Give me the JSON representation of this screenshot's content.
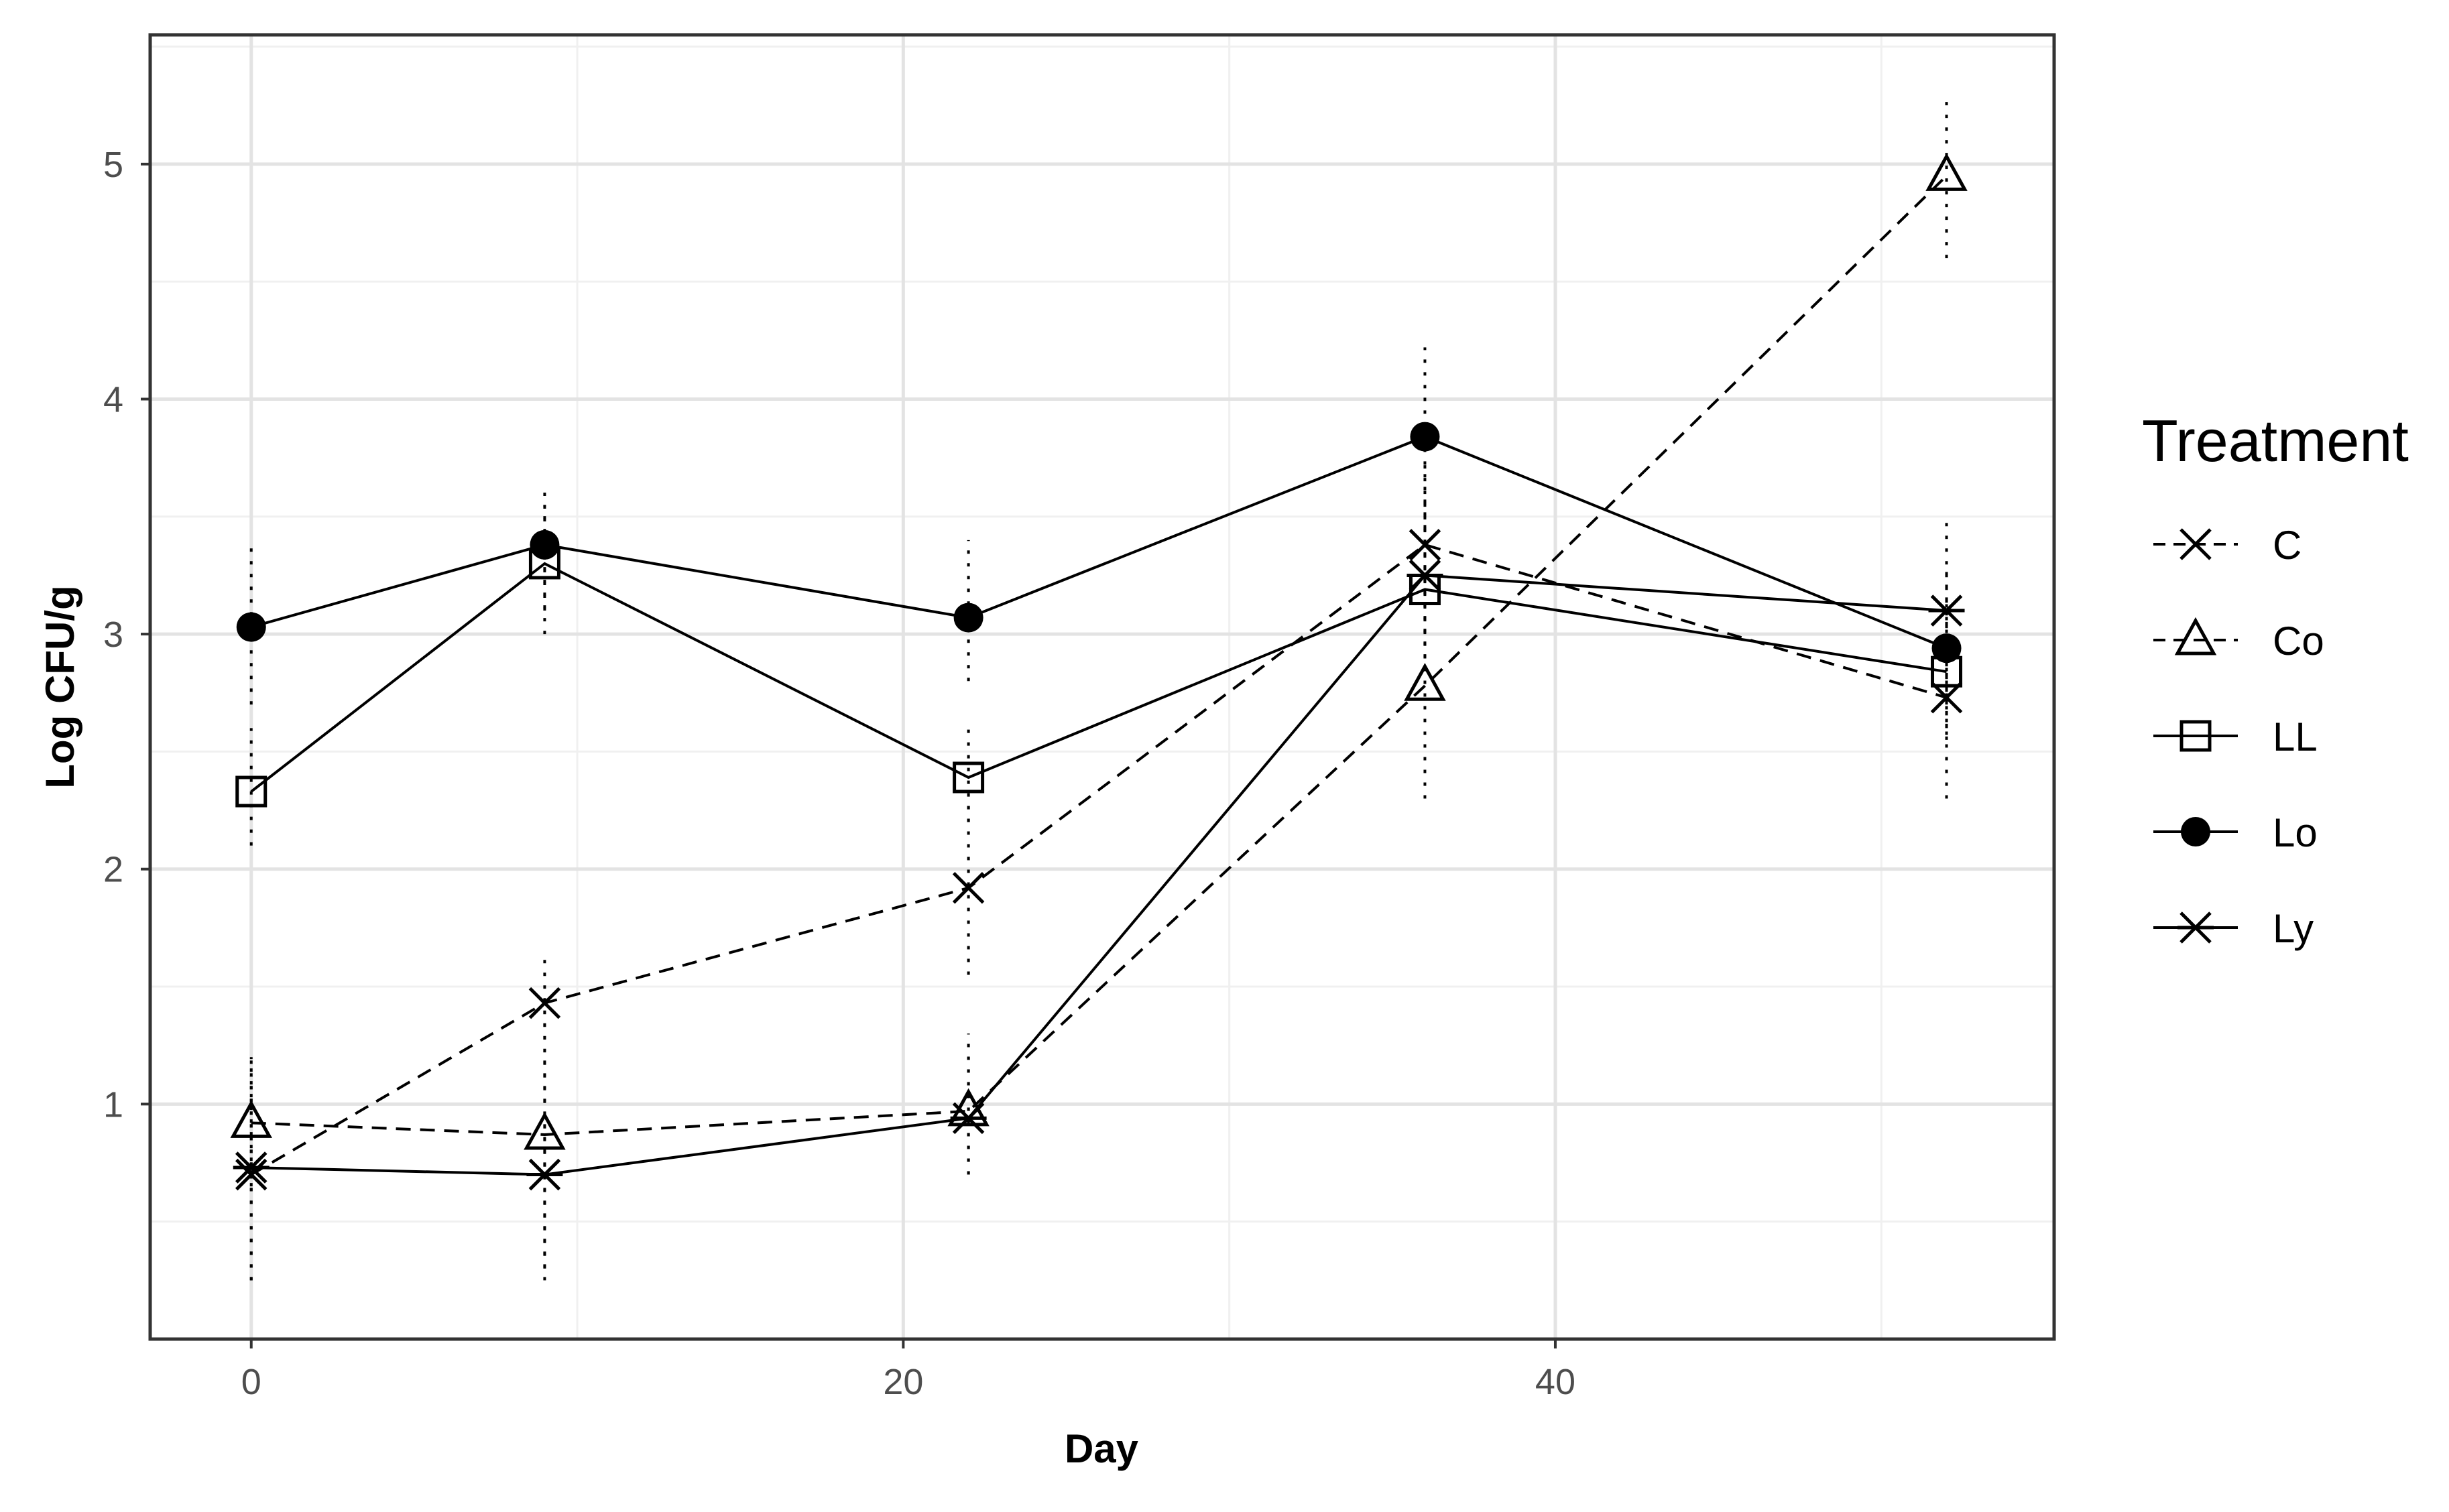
{
  "chart_data": {
    "type": "line",
    "title": "",
    "xlabel": "Day",
    "ylabel": "Log CFU/g",
    "xlim": [
      -3.1,
      55.3
    ],
    "ylim": [
      0.0,
      5.55
    ],
    "x_ticks": [
      0,
      20,
      40
    ],
    "y_ticks": [
      1,
      2,
      3,
      4,
      5
    ],
    "x_minor_ticks": [
      10,
      30,
      50
    ],
    "y_minor_ticks": [
      0.5,
      1.5,
      2.5,
      3.5,
      4.5,
      5.5
    ],
    "grid": true,
    "legend": {
      "title": "Treatment",
      "position": "right"
    },
    "x": [
      0,
      9,
      22,
      36,
      52
    ],
    "series": [
      {
        "name": "C",
        "marker": "x",
        "line": "dashed",
        "values": [
          0.7,
          1.43,
          1.92,
          3.38,
          2.73
        ],
        "error_low": [
          0.25,
          1.22,
          1.55,
          3.0,
          2.3
        ],
        "error_high": [
          1.12,
          1.62,
          2.3,
          3.75,
          3.15
        ]
      },
      {
        "name": "Co",
        "marker": "triangle",
        "line": "dashed",
        "values": [
          0.92,
          0.87,
          0.97,
          2.78,
          4.95
        ],
        "error_low": [
          0.65,
          0.3,
          0.7,
          2.3,
          4.6
        ],
        "error_high": [
          1.2,
          1.4,
          1.3,
          3.25,
          5.3
        ]
      },
      {
        "name": "LL",
        "marker": "square",
        "line": "solid",
        "values": [
          2.33,
          3.3,
          2.39,
          3.19,
          2.84
        ],
        "error_low": [
          2.1,
          3.0,
          2.2,
          2.95,
          2.55
        ],
        "error_high": [
          2.6,
          3.55,
          2.6,
          3.45,
          3.1
        ]
      },
      {
        "name": "Lo",
        "marker": "circle",
        "line": "solid",
        "values": [
          3.03,
          3.38,
          3.07,
          3.84,
          2.94
        ],
        "error_low": [
          2.7,
          3.1,
          2.8,
          3.45,
          2.6
        ],
        "error_high": [
          3.4,
          3.62,
          3.4,
          4.22,
          3.3
        ]
      },
      {
        "name": "Ly",
        "marker": "asterisk",
        "line": "solid",
        "values": [
          0.73,
          0.7,
          0.94,
          3.25,
          3.1
        ],
        "error_low": [
          0.25,
          0.25,
          0.7,
          2.9,
          2.7
        ],
        "error_high": [
          1.2,
          1.2,
          1.2,
          3.6,
          3.5
        ]
      }
    ]
  }
}
